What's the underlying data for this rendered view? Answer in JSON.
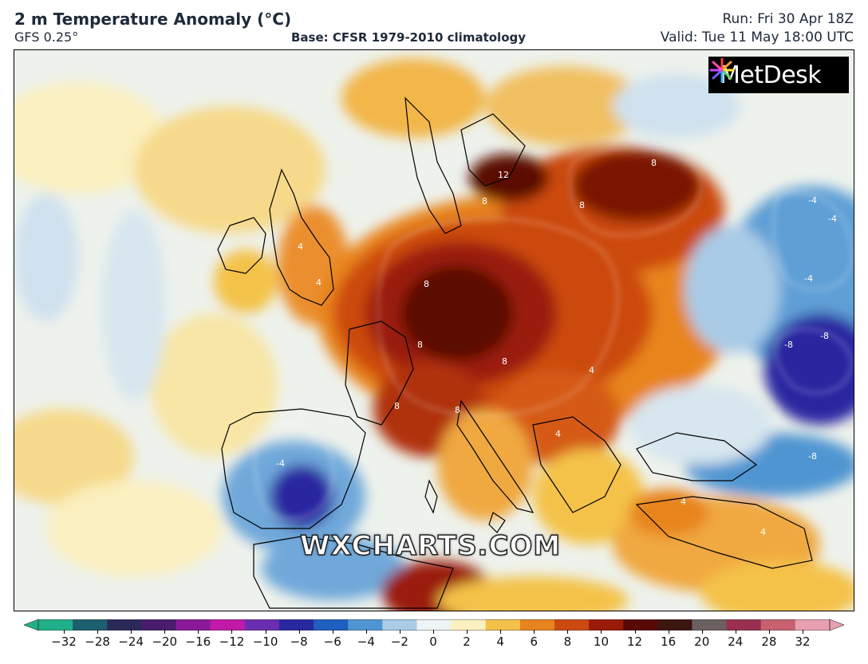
{
  "header": {
    "title": "2 m Temperature Anomaly (°C)",
    "model": "GFS 0.25°",
    "base": "Base: CFSR 1979-2010 climatology",
    "run": "Run: Fri 30 Apr 18Z",
    "valid": "Valid: Tue 11 May 18:00 UTC"
  },
  "logo": {
    "text": "MetDesk"
  },
  "watermark": "WXCHARTS.COM",
  "contour_labels": [
    "12",
    "8",
    "8",
    "8",
    "8",
    "8",
    "8",
    "8",
    "8",
    "4",
    "4",
    "4",
    "4",
    "4",
    "4",
    "-4",
    "-4",
    "-4",
    "-4",
    "-4",
    "-8",
    "-8",
    "-8"
  ],
  "colorbar": {
    "ticks": [
      "−32",
      "−28",
      "−24",
      "−20",
      "−16",
      "−12",
      "−10",
      "−8",
      "−6",
      "−4",
      "−2",
      "0",
      "2",
      "4",
      "6",
      "8",
      "10",
      "12",
      "16",
      "20",
      "24",
      "28",
      "32"
    ],
    "colors": [
      "#1fb08a",
      "#1c5f6e",
      "#2a2a5a",
      "#4a1c6e",
      "#8a1a9a",
      "#c21aa8",
      "#6a2fb0",
      "#2a28a0",
      "#1f5fc0",
      "#4f95d2",
      "#a9cbe6",
      "#eef3f5",
      "#fbf0c0",
      "#f4c24a",
      "#e8841f",
      "#cc4a10",
      "#9a1a08",
      "#5a0a06",
      "#3c1510",
      "#6a6060",
      "#9a3050",
      "#c86070",
      "#e8a0b0"
    ]
  }
}
